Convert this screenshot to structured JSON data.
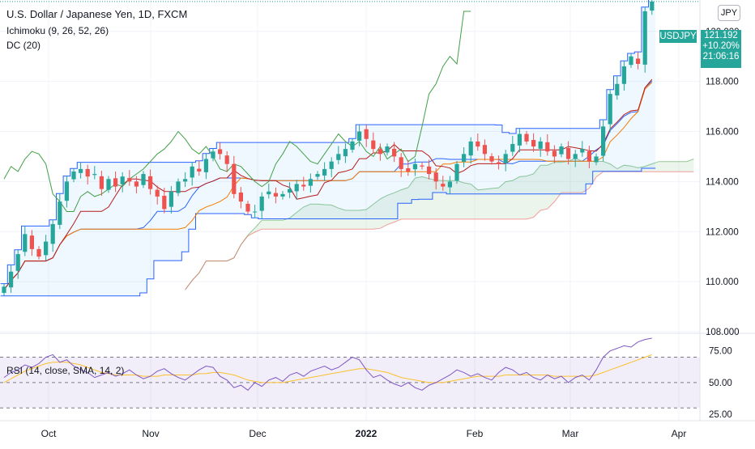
{
  "header": {
    "title": "U.S. Dollar / Japanese Yen, 1D, FXCM",
    "indicator_1": "Ichimoku (9, 26, 52, 26)",
    "indicator_2": "DC (20)",
    "rsi_label": "RSI (14, close, SMA, 14, 2)",
    "currency_button": "JPY"
  },
  "badge": {
    "symbol": "USDJPY",
    "price": "121.192",
    "change": "+10.20%",
    "countdown": "21:06:16"
  },
  "colors": {
    "up": "#26a69a",
    "down": "#ef5350",
    "donchian": "#2962ff",
    "tenkan": "#b71c1c",
    "kijun": "#f57c00",
    "chikou": "#43a047",
    "rsi": "#7e57c2",
    "rsi_ma": "#fbc02d"
  },
  "chart_data": [
    {
      "type": "candlestick",
      "title": "U.S. Dollar / Japanese Yen, 1D, FXCM",
      "x_labels": [
        "Oct",
        "Nov",
        "Dec",
        "2022",
        "Feb",
        "Mar",
        "Apr"
      ],
      "y_ticks": [
        "108.000",
        "110.000",
        "112.000",
        "114.000",
        "116.000",
        "118.000",
        "120.000"
      ],
      "ylim": [
        108,
        120.8
      ],
      "last_price": 121.192,
      "series": [
        {
          "name": "Close",
          "values": [
            109.8,
            110.4,
            111.1,
            111.9,
            111.3,
            111.0,
            111.6,
            112.3,
            113.2,
            114.0,
            114.4,
            114.5,
            114.2,
            114.3,
            113.7,
            114.1,
            113.8,
            114.2,
            114.0,
            113.8,
            114.3,
            113.7,
            113.4,
            112.9,
            113.6,
            114.0,
            114.1,
            114.6,
            114.4,
            114.9,
            115.2,
            115.1,
            114.7,
            113.5,
            113.2,
            112.8,
            112.8,
            113.4,
            113.6,
            113.4,
            113.5,
            113.7,
            113.9,
            113.8,
            114.1,
            114.3,
            114.5,
            114.8,
            115.1,
            115.3,
            115.6,
            116.0,
            115.7,
            115.3,
            115.1,
            115.4,
            115.0,
            114.5,
            114.4,
            114.7,
            114.6,
            114.3,
            114.0,
            113.8,
            114.0,
            114.7,
            115.1,
            115.6,
            115.4,
            115.1,
            114.8,
            114.7,
            115.1,
            115.5,
            115.9,
            115.6,
            115.4,
            115.6,
            115.2,
            115.0,
            115.4,
            114.9,
            115.1,
            115.3,
            114.8,
            115.0,
            116.2,
            117.5,
            117.9,
            118.6,
            119.0,
            118.7,
            120.8,
            121.19
          ]
        }
      ]
    },
    {
      "type": "line",
      "title": "RSI (14, close, SMA, 14, 2)",
      "y_ticks": [
        "25.00",
        "50.00",
        "75.00"
      ],
      "ylim": [
        20,
        85
      ],
      "series": [
        {
          "name": "RSI",
          "values": [
            54.0,
            58.0,
            60.0,
            64.0,
            62.0,
            65.0,
            70.0,
            72.0,
            66.0,
            68.0,
            63.0,
            60.0,
            58.0,
            54.0,
            56.0,
            58.0,
            55.0,
            57.0,
            60.0,
            56.0,
            53.0,
            55.0,
            59.0,
            61.0,
            57.0,
            54.0,
            52.0,
            56.0,
            60.0,
            63.0,
            62.0,
            55.0,
            52.0,
            46.0,
            48.0,
            44.0,
            50.0,
            47.0,
            52.0,
            54.0,
            51.0,
            56.0,
            58.0,
            55.0,
            59.0,
            61.0,
            63.0,
            60.0,
            62.0,
            66.0,
            70.0,
            68.0,
            60.0,
            54.0,
            56.0,
            52.0,
            49.0,
            47.0,
            50.0,
            46.0,
            44.0,
            48.0,
            50.0,
            53.0,
            56.0,
            60.0,
            58.0,
            55.0,
            57.0,
            54.0,
            52.0,
            58.0,
            62.0,
            60.0,
            56.0,
            58.0,
            54.0,
            52.0,
            56.0,
            53.0,
            55.0,
            50.0,
            54.0,
            56.0,
            52.0,
            60.0,
            70.0,
            75.0,
            77.0,
            79.0,
            78.0,
            82.0,
            84.0,
            85.0
          ]
        },
        {
          "name": "RSI-based MA",
          "values": [
            50.0,
            53.0,
            56.0,
            59.0,
            61.0,
            63.0,
            65.0,
            66.0,
            66.0,
            66.0,
            65.0,
            64.0,
            62.0,
            60.0,
            58.0,
            57.0,
            56.0,
            56.0,
            56.0,
            56.0,
            55.0,
            55.0,
            55.0,
            56.0,
            56.0,
            56.0,
            56.0,
            56.0,
            57.0,
            57.0,
            58.0,
            58.0,
            57.0,
            56.0,
            54.0,
            52.0,
            51.0,
            50.0,
            50.0,
            50.0,
            50.0,
            51.0,
            52.0,
            53.0,
            54.0,
            55.0,
            56.0,
            57.0,
            58.0,
            59.0,
            60.0,
            61.0,
            61.0,
            60.0,
            59.0,
            58.0,
            56.0,
            54.0,
            53.0,
            52.0,
            51.0,
            50.0,
            50.0,
            50.0,
            51.0,
            52.0,
            53.0,
            54.0,
            55.0,
            55.0,
            55.0,
            55.0,
            56.0,
            56.0,
            56.0,
            56.0,
            56.0,
            56.0,
            56.0,
            55.0,
            55.0,
            55.0,
            55.0,
            55.0,
            55.0,
            56.0,
            58.0,
            60.0,
            62.0,
            64.0,
            66.0,
            68.0,
            70.0,
            72.0
          ]
        }
      ]
    }
  ]
}
